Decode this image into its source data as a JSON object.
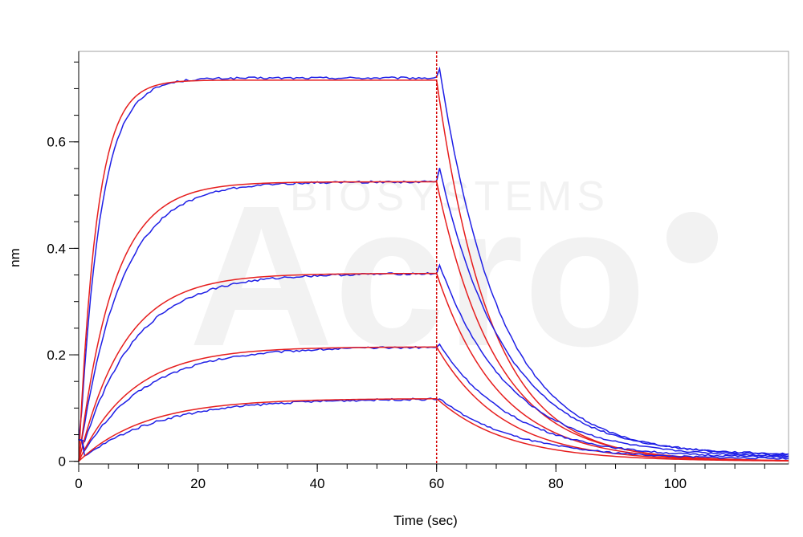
{
  "chart_data": {
    "type": "line",
    "xlabel": "Time (sec)",
    "ylabel": "nm",
    "xlim": [
      0,
      119
    ],
    "ylim": [
      -0.005,
      0.77
    ],
    "x_ticks": [
      0,
      20,
      40,
      60,
      80,
      100
    ],
    "x_tick_labels": [
      "0",
      "20",
      "40",
      "60",
      "80",
      "100"
    ],
    "y_ticks": [
      0,
      0.2,
      0.4,
      0.6
    ],
    "y_tick_labels": [
      "0",
      "0.2",
      "0.4",
      "0.6"
    ],
    "grid": false,
    "association_end": 60,
    "watermark": {
      "company": "BIOSYSTEMS",
      "logo": "Acro"
    },
    "colors": {
      "measured": "#1f1fe6",
      "fit": "#e61e1e",
      "marker": "#d40000",
      "axis": "#000000",
      "frame": "#a0a0a0"
    },
    "series": [
      {
        "observed_plateau": 0.72,
        "fitted_plateau": 0.716,
        "observed_peak": 0.775,
        "fitted_end": 0.0
      },
      {
        "observed_plateau": 0.525,
        "fitted_plateau": 0.525,
        "observed_peak": 0.575,
        "fitted_end": 0.0
      },
      {
        "observed_plateau": 0.353,
        "fitted_plateau": 0.353,
        "observed_peak": 0.385,
        "fitted_end": 0.0
      },
      {
        "observed_plateau": 0.215,
        "fitted_plateau": 0.215,
        "observed_peak": 0.228,
        "fitted_end": 0.0
      },
      {
        "observed_plateau": 0.118,
        "fitted_plateau": 0.118,
        "observed_peak": 0.122,
        "fitted_end": 0.0
      }
    ]
  }
}
